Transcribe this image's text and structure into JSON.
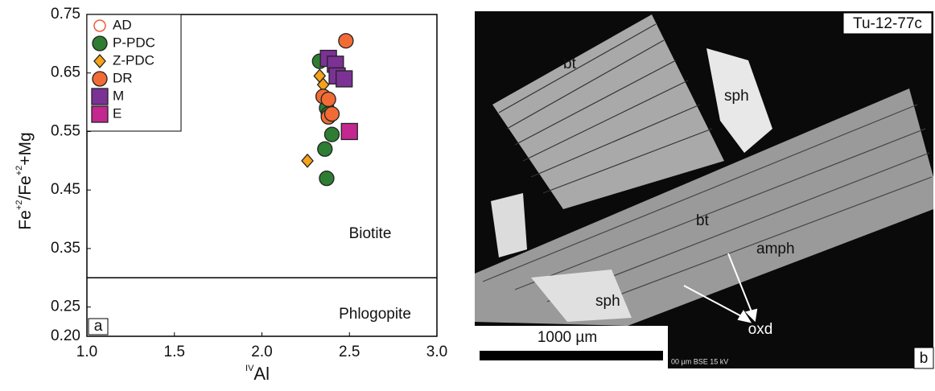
{
  "chart_data": {
    "type": "scatter",
    "x_label": [
      "IV",
      "Al"
    ],
    "y_label": [
      "Fe",
      "+2",
      "/Fe",
      "+2",
      "+Mg"
    ],
    "xlim": [
      1.0,
      3.0
    ],
    "xticks": [
      {
        "value": 1.0,
        "label": "1.0"
      },
      {
        "value": 1.5,
        "label": "1.5"
      },
      {
        "value": 2.0,
        "label": "2.0"
      },
      {
        "value": 2.5,
        "label": "2.5"
      },
      {
        "value": 3.0,
        "label": "3.0"
      }
    ],
    "ylim": [
      0.2,
      0.75
    ],
    "yticks": [
      {
        "value": 0.2,
        "label": "0.20"
      },
      0.25,
      0.35,
      0.45,
      0.55,
      0.65,
      0.75
    ],
    "hlines": [
      0.3
    ],
    "field_labels": [
      "Biotite",
      "Phlogopite"
    ],
    "panel_label": "a",
    "grid": false,
    "series": [
      {
        "name": "AD",
        "color": "#f15a3a",
        "marker": "open-circle",
        "x": [],
        "y": []
      },
      {
        "name": "P-PDC",
        "color": "#2e7d32",
        "marker": "circle",
        "x": [
          2.33,
          2.37,
          2.38,
          2.4,
          2.36,
          2.37
        ],
        "y": [
          0.67,
          0.59,
          0.58,
          0.545,
          0.52,
          0.47
        ]
      },
      {
        "name": "Z-PDC",
        "color": "#f7a21b",
        "marker": "diamond",
        "x": [
          2.33,
          2.35,
          2.26
        ],
        "y": [
          0.645,
          0.63,
          0.5
        ]
      },
      {
        "name": "DR",
        "color": "#f26b35",
        "marker": "circle",
        "x": [
          2.48,
          2.35,
          2.38,
          2.38,
          2.4
        ],
        "y": [
          0.705,
          0.61,
          0.605,
          0.575,
          0.58
        ]
      },
      {
        "name": "M",
        "color": "#7b3294",
        "marker": "square",
        "x": [
          2.38,
          2.42,
          2.43,
          2.47
        ],
        "y": [
          0.675,
          0.665,
          0.645,
          0.64
        ]
      },
      {
        "name": "E",
        "color": "#c2288f",
        "marker": "square",
        "x": [
          2.5
        ],
        "y": [
          0.55
        ]
      }
    ]
  },
  "image_panel": {
    "sample": "Tu-12-77c",
    "panel_label": "b",
    "scale_bar": "1000 µm",
    "footer": "00 µm BSE 15 kV",
    "labels": [
      "bt",
      "sph",
      "bt",
      "amph",
      "sph",
      "oxd"
    ]
  }
}
